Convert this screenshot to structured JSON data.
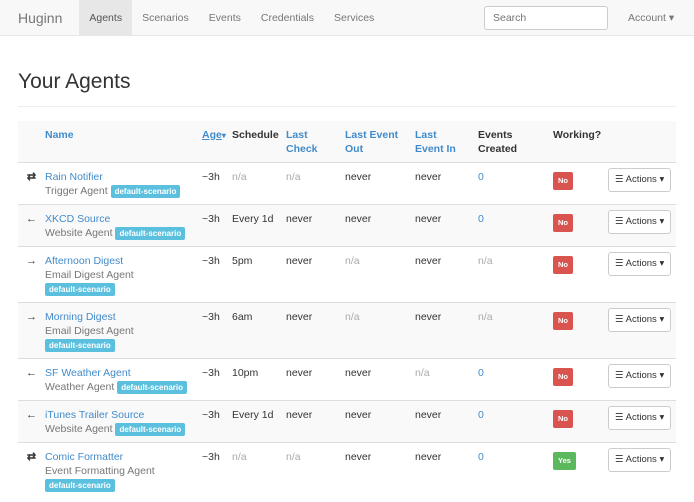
{
  "nav": {
    "brand": "Huginn",
    "items": [
      "Agents",
      "Scenarios",
      "Events",
      "Credentials",
      "Services"
    ],
    "active": "Agents",
    "search_placeholder": "Search",
    "account": "Account ▾"
  },
  "page_title": "Your Agents",
  "table": {
    "headers": {
      "name": "Name",
      "age": "Age",
      "sort_indicator": "▾",
      "schedule": "Schedule",
      "last_check": "Last Check",
      "last_event_out": "Last Event Out",
      "last_event_in": "Last Event In",
      "events_created": "Events Created",
      "working": "Working?"
    },
    "actions_label": "Actions",
    "colors": {
      "no": "#d9534f",
      "yes": "#5cb85c"
    },
    "rows": [
      {
        "icon": "⇄",
        "icon_name": "exchange-icon",
        "name": "Rain Notifier",
        "type": "Trigger Agent",
        "scenario": "default-scenario",
        "age": "~3h",
        "schedule": "n/a",
        "last_check": "n/a",
        "last_event_out": "never",
        "last_event_in": "never",
        "events_created": "0",
        "working": "No"
      },
      {
        "icon": "←",
        "icon_name": "arrow-left-icon",
        "name": "XKCD Source",
        "type": "Website Agent",
        "scenario": "default-scenario",
        "age": "~3h",
        "schedule": "Every 1d",
        "last_check": "never",
        "last_event_out": "never",
        "last_event_in": "never",
        "events_created": "0",
        "working": "No"
      },
      {
        "icon": "→",
        "icon_name": "arrow-right-icon",
        "name": "Afternoon Digest",
        "type": "Email Digest Agent",
        "scenario": "default-scenario",
        "age": "~3h",
        "schedule": "5pm",
        "last_check": "never",
        "last_event_out": "n/a",
        "last_event_in": "never",
        "events_created": "n/a",
        "working": "No"
      },
      {
        "icon": "→",
        "icon_name": "arrow-right-icon",
        "name": "Morning Digest",
        "type": "Email Digest Agent",
        "scenario": "default-scenario",
        "age": "~3h",
        "schedule": "6am",
        "last_check": "never",
        "last_event_out": "n/a",
        "last_event_in": "never",
        "events_created": "n/a",
        "working": "No"
      },
      {
        "icon": "←",
        "icon_name": "arrow-left-icon",
        "name": "SF Weather Agent",
        "type": "Weather Agent",
        "scenario": "default-scenario",
        "age": "~3h",
        "schedule": "10pm",
        "last_check": "never",
        "last_event_out": "never",
        "last_event_in": "n/a",
        "events_created": "0",
        "working": "No"
      },
      {
        "icon": "←",
        "icon_name": "arrow-left-icon",
        "name": "iTunes Trailer Source",
        "type": "Website Agent",
        "scenario": "default-scenario",
        "age": "~3h",
        "schedule": "Every 1d",
        "last_check": "never",
        "last_event_out": "never",
        "last_event_in": "never",
        "events_created": "0",
        "working": "No"
      },
      {
        "icon": "⇄",
        "icon_name": "exchange-icon",
        "name": "Comic Formatter",
        "type": "Event Formatting Agent",
        "scenario": "default-scenario",
        "age": "~3h",
        "schedule": "n/a",
        "last_check": "n/a",
        "last_event_out": "never",
        "last_event_in": "never",
        "events_created": "0",
        "working": "Yes"
      }
    ]
  }
}
